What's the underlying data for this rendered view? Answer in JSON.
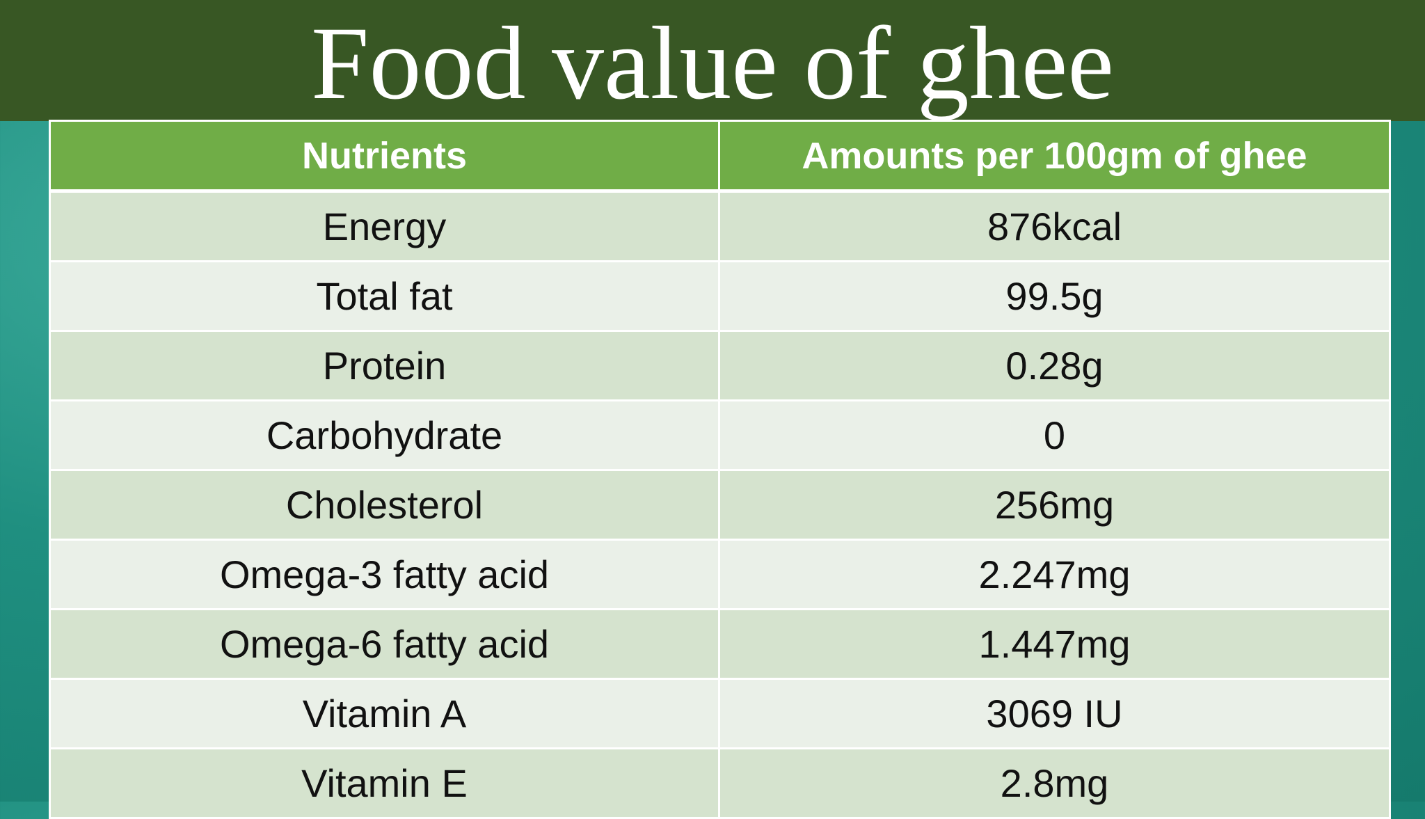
{
  "title": "Food value of ghee",
  "table": {
    "header": [
      "Nutrients",
      "Amounts per 100gm of ghee"
    ],
    "rows": [
      [
        "Energy",
        "876kcal"
      ],
      [
        "Total fat",
        "99.5g"
      ],
      [
        "Protein",
        "0.28g"
      ],
      [
        "Carbohydrate",
        "0"
      ],
      [
        "Cholesterol",
        "256mg"
      ],
      [
        "Omega-3 fatty acid",
        "2.247mg"
      ],
      [
        "Omega-6 fatty acid",
        "1.447mg"
      ],
      [
        "Vitamin A",
        "3069 IU"
      ],
      [
        "Vitamin E",
        "2.8mg"
      ]
    ]
  }
}
